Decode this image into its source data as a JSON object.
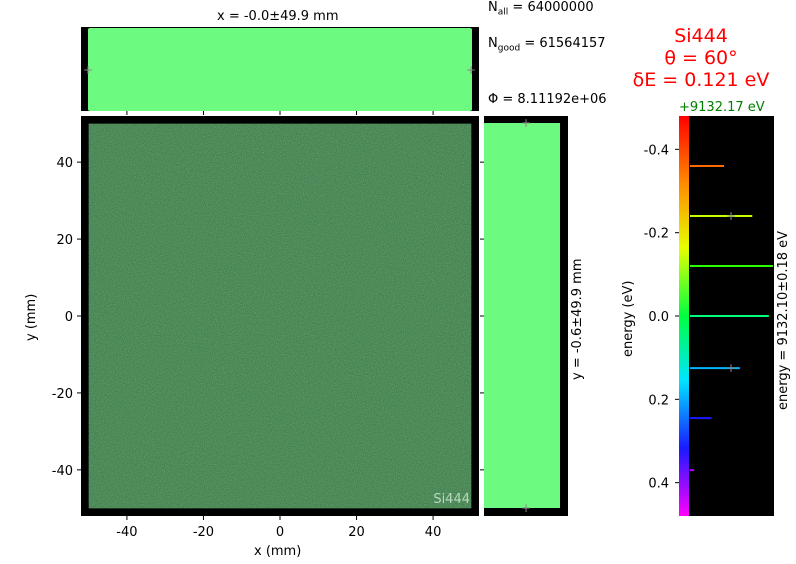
{
  "chart_data": {
    "type": "scatter",
    "title": "",
    "xlabel": "x (mm)",
    "ylabel": "y (mm)",
    "xlim": [
      -52,
      52
    ],
    "ylim": [
      -52,
      52
    ],
    "xticks": [
      -40,
      -20,
      0,
      20,
      40
    ],
    "yticks": [
      -40,
      -20,
      0,
      20,
      40
    ],
    "beam_extent_mm": {
      "x": [
        -50,
        50
      ],
      "y": [
        -50,
        50
      ]
    },
    "grid": false,
    "top_histogram_label": "x = -0.0±49.9 mm",
    "side_histogram_label": "y = -0.6±49.9 mm",
    "watermark": "Si444",
    "stats": {
      "n_all": "64000000",
      "n_good": "61564157",
      "phi": "8.11192e+06"
    },
    "crystal": {
      "name": "Si444",
      "theta": "θ = 60°",
      "delta_e": "δE = 0.121 eV"
    },
    "energy_panel": {
      "offset_label": "+9132.17 eV",
      "ylabel": "energy (eV)",
      "side_label": "energy = 9132.10±0.18 eV",
      "yticks": [
        -0.4,
        -0.2,
        0.0,
        0.2,
        0.4
      ],
      "ylim": [
        -0.48,
        0.48
      ],
      "lines": [
        {
          "energy": -0.36,
          "relative_length": 0.41,
          "color": "#ff6a00"
        },
        {
          "energy": -0.24,
          "relative_length": 0.75,
          "color": "#c8ff00"
        },
        {
          "energy": -0.12,
          "relative_length": 1.0,
          "color": "#2bff00"
        },
        {
          "energy": 0.0,
          "relative_length": 0.95,
          "color": "#00ff7a"
        },
        {
          "energy": 0.125,
          "relative_length": 0.6,
          "color": "#00b7ff"
        },
        {
          "energy": 0.245,
          "relative_length": 0.26,
          "color": "#1a1aff"
        },
        {
          "energy": 0.37,
          "relative_length": 0.05,
          "color": "#b300ff"
        }
      ]
    },
    "colors": {
      "beam": "#6dfa80",
      "beam_dense": "#5fa86d",
      "background": "#000000",
      "crystal_text": "#ff0000",
      "offset_text": "#008000"
    }
  }
}
